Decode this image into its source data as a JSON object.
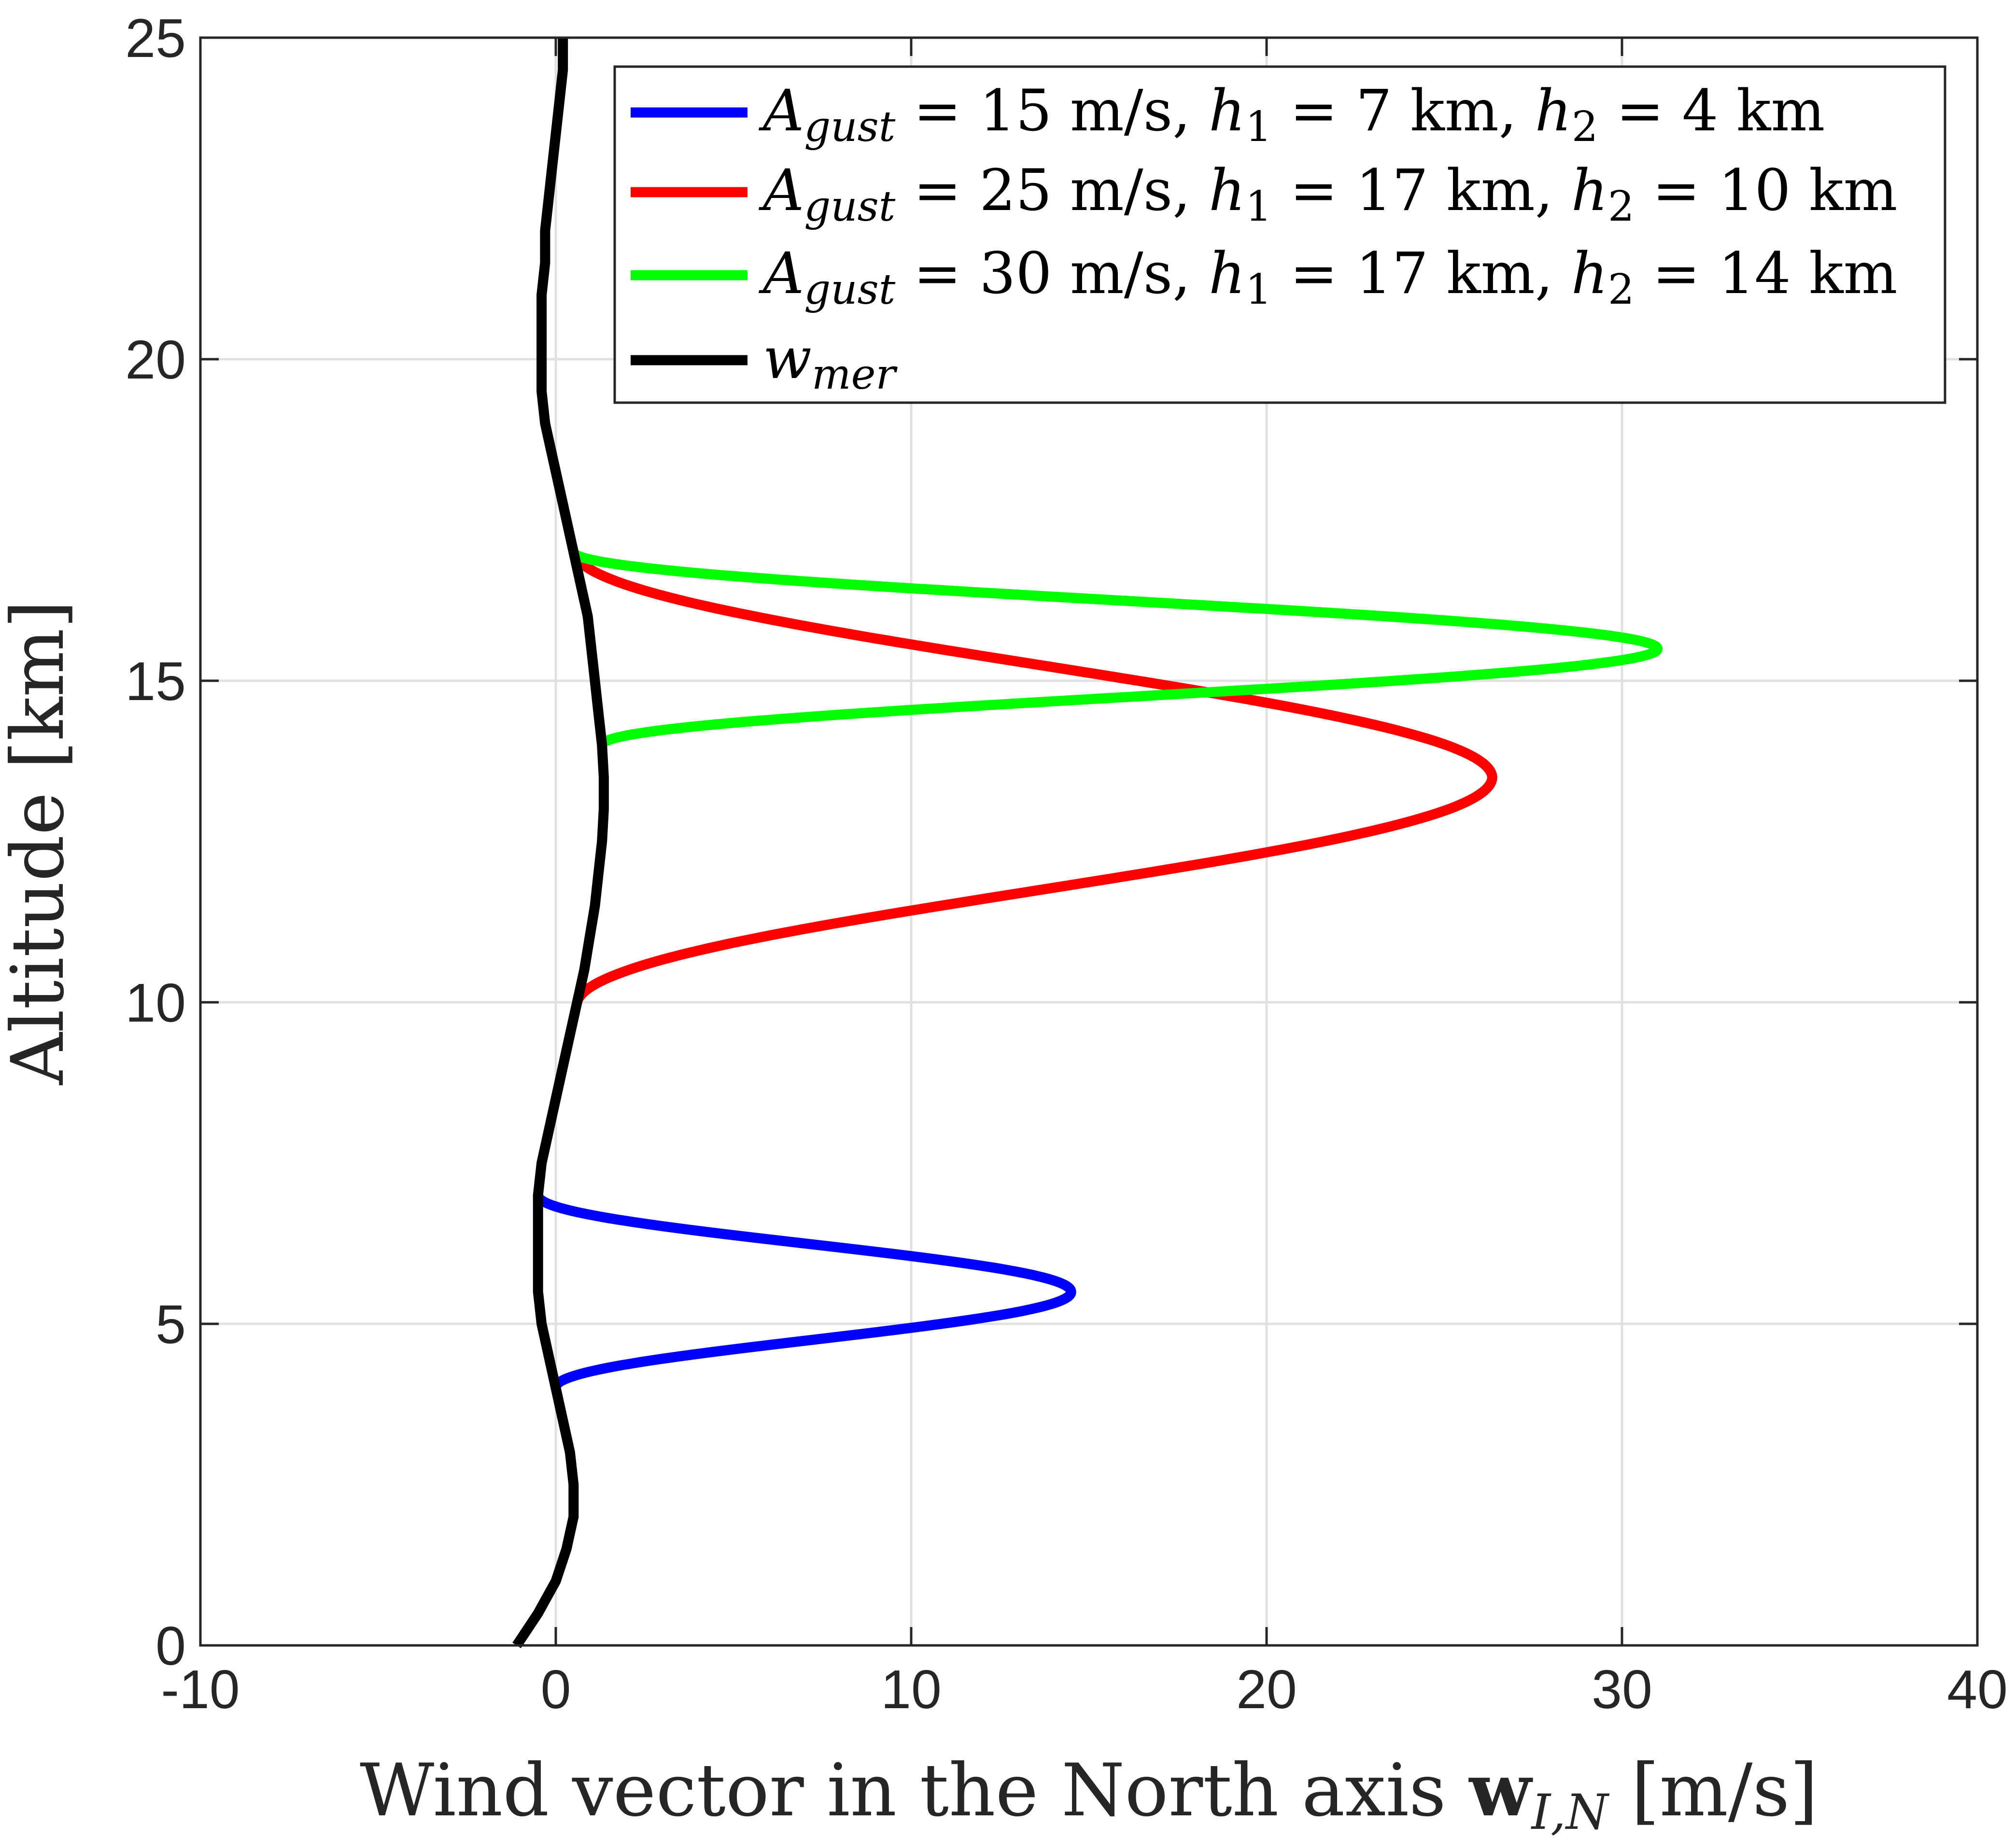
{
  "chart_data": {
    "type": "line",
    "title": "",
    "xlabel": "Wind vector in the North axis w_{I,N} [m/s]",
    "xlabel_parts": {
      "pre": "Wind vector in the North axis ",
      "bold": "w",
      "sub": "I,N",
      "post": " [m/s]"
    },
    "ylabel": "Altitude [km]",
    "xlim": [
      -10,
      40
    ],
    "ylim": [
      0,
      25
    ],
    "xticks": [
      -10,
      0,
      10,
      20,
      30,
      40
    ],
    "yticks": [
      0,
      5,
      10,
      15,
      20,
      25
    ],
    "xtick_labels": [
      "-10",
      "0",
      "10",
      "20",
      "30",
      "40"
    ],
    "ytick_labels": [
      "0",
      "5",
      "10",
      "15",
      "20",
      "25"
    ],
    "grid": true,
    "legend_position": "top-right",
    "series": [
      {
        "name": "A_gust = 15 m/s, h1 = 7 km, h2 = 4 km",
        "legend": {
          "amp": "15",
          "h1": "7",
          "h2": "4"
        },
        "color": "#0000ff",
        "gust": {
          "amplitude": 15,
          "h1": 7,
          "h2": 4
        }
      },
      {
        "name": "A_gust = 25 m/s, h1 = 17 km, h2 = 10 km",
        "legend": {
          "amp": "25",
          "h1": "17",
          "h2": "10"
        },
        "color": "#ff0000",
        "gust": {
          "amplitude": 25,
          "h1": 17,
          "h2": 10
        }
      },
      {
        "name": "A_gust = 30 m/s, h1 = 17 km, h2 = 14 km",
        "legend": {
          "amp": "30",
          "h1": "17",
          "h2": "14"
        },
        "color": "#00ff00",
        "gust": {
          "amplitude": 30,
          "h1": 17,
          "h2": 14
        }
      },
      {
        "name": "w_mer",
        "legend": {
          "label": "w",
          "sub": "mer"
        },
        "color": "#000000",
        "profile": {
          "altitude_km": [
            0,
            0.5,
            1,
            1.5,
            2,
            2.5,
            3,
            3.5,
            4,
            4.5,
            5,
            5.5,
            6,
            6.5,
            7,
            7.5,
            8,
            8.5,
            9,
            9.5,
            10,
            10.5,
            11,
            11.5,
            12,
            12.5,
            13,
            13.5,
            14,
            14.5,
            15,
            15.5,
            16,
            16.5,
            17,
            17.5,
            18,
            18.5,
            19,
            19.5,
            20,
            20.5,
            21,
            21.5,
            22,
            22.5,
            23,
            23.5,
            24,
            24.5,
            25
          ],
          "wind_ms": [
            -1.1,
            -0.5,
            0.0,
            0.3,
            0.5,
            0.5,
            0.4,
            0.2,
            0.0,
            -0.2,
            -0.4,
            -0.5,
            -0.5,
            -0.5,
            -0.5,
            -0.4,
            -0.2,
            0.0,
            0.2,
            0.4,
            0.6,
            0.8,
            0.95,
            1.1,
            1.2,
            1.3,
            1.35,
            1.35,
            1.3,
            1.2,
            1.1,
            1.0,
            0.9,
            0.7,
            0.5,
            0.3,
            0.1,
            -0.1,
            -0.3,
            -0.4,
            -0.4,
            -0.4,
            -0.4,
            -0.3,
            -0.3,
            -0.2,
            -0.1,
            0.0,
            0.1,
            0.2,
            0.2
          ]
        }
      }
    ]
  }
}
